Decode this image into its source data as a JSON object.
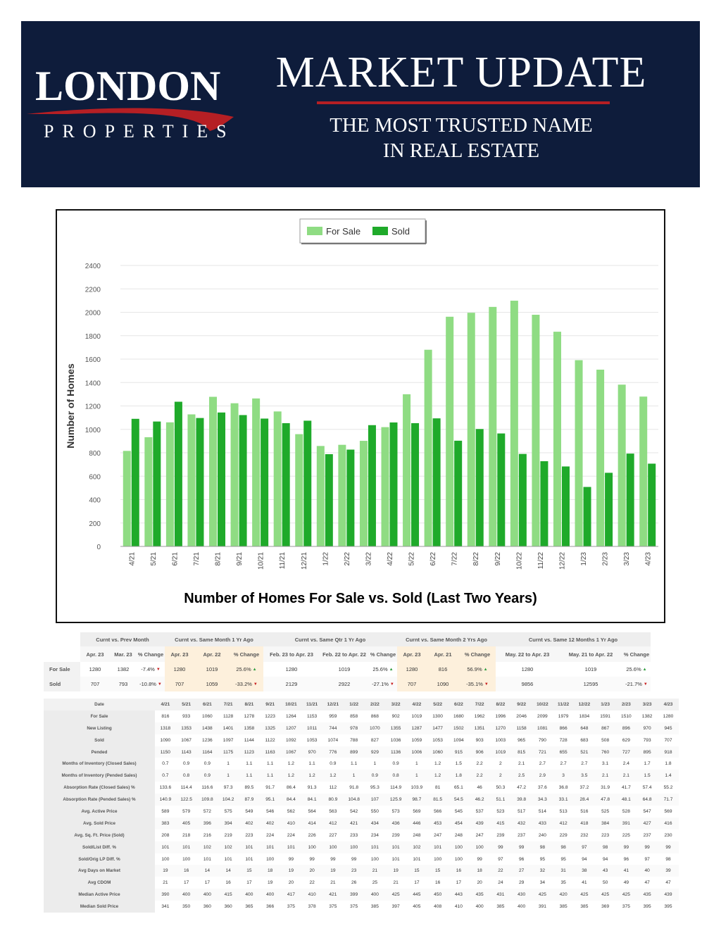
{
  "banner": {
    "logo_main": "LONDON",
    "logo_sub": "PROPERTIES",
    "title": "MARKET UPDATE",
    "tagline_1": "THE MOST TRUSTED NAME",
    "tagline_2": "IN REAL ESTATE",
    "bg_color": "#0e1c3b",
    "accent_color": "#b51f24"
  },
  "chart_data": {
    "type": "bar",
    "title": "Number of Homes For Sale vs. Sold (Last Two Years)",
    "xlabel": "",
    "ylabel": "Number of Homes",
    "ylim": [
      0,
      2400
    ],
    "yticks": [
      0,
      200,
      400,
      600,
      800,
      1000,
      1200,
      1400,
      1600,
      1800,
      2000,
      2200,
      2400
    ],
    "grid": true,
    "legend_position": "top-center",
    "categories": [
      "4/21",
      "5/21",
      "6/21",
      "7/21",
      "8/21",
      "9/21",
      "10/21",
      "11/21",
      "12/21",
      "1/22",
      "2/22",
      "3/22",
      "4/22",
      "5/22",
      "6/22",
      "7/22",
      "8/22",
      "9/22",
      "10/22",
      "11/22",
      "12/22",
      "1/23",
      "2/23",
      "3/23",
      "4/23"
    ],
    "series": [
      {
        "name": "For Sale",
        "color": "#8fdc83",
        "values": [
          816,
          933,
          1060,
          1128,
          1278,
          1223,
          1264,
          1153,
          959,
          858,
          868,
          902,
          1019,
          1300,
          1680,
          1962,
          1996,
          2046,
          2099,
          1979,
          1834,
          1591,
          1510,
          1382,
          1280
        ]
      },
      {
        "name": "Sold",
        "color": "#1faa2a",
        "values": [
          1090,
          1067,
          1236,
          1097,
          1144,
          1122,
          1092,
          1053,
          1074,
          788,
          827,
          1036,
          1059,
          1053,
          1094,
          903,
          1003,
          965,
          790,
          728,
          683,
          508,
          629,
          793,
          707
        ]
      }
    ]
  },
  "summary": {
    "groups": [
      "Curnt vs. Prev Month",
      "Curnt vs. Same Month 1 Yr Ago",
      "Curnt vs. Same Qtr 1 Yr Ago",
      "Curnt vs. Same Month 2 Yrs Ago",
      "Curnt vs. Same 12 Months 1 Yr Ago"
    ],
    "subheads": [
      "Apr. 23",
      "Mar. 23",
      "% Change",
      "Apr. 23",
      "Apr. 22",
      "% Change",
      "Feb. 23 to Apr. 23",
      "Feb. 22 to Apr. 22",
      "% Change",
      "Apr. 23",
      "Apr. 21",
      "% Change",
      "May. 22 to Apr. 23",
      "May. 21 to Apr. 22",
      "% Change"
    ],
    "rows": [
      {
        "label": "For Sale",
        "cells": [
          "1280",
          "1382",
          "-7.4%",
          "1280",
          "1019",
          "25.6%",
          "1280",
          "1019",
          "25.6%",
          "1280",
          "816",
          "56.9%",
          "1280",
          "1019",
          "25.6%"
        ],
        "dirs": [
          "down",
          "up",
          "up",
          "up",
          "up"
        ]
      },
      {
        "label": "Sold",
        "cells": [
          "707",
          "793",
          "-10.8%",
          "707",
          "1059",
          "-33.2%",
          "2129",
          "2922",
          "-27.1%",
          "707",
          "1090",
          "-35.1%",
          "9856",
          "12595",
          "-21.7%"
        ],
        "dirs": [
          "down",
          "down",
          "down",
          "down",
          "down"
        ]
      }
    ],
    "highlight_color": "#fdf0dc"
  },
  "detail": {
    "date_label": "Date",
    "dates": [
      "4/21",
      "5/21",
      "6/21",
      "7/21",
      "8/21",
      "9/21",
      "10/21",
      "11/21",
      "12/21",
      "1/22",
      "2/22",
      "3/22",
      "4/22",
      "5/22",
      "6/22",
      "7/22",
      "8/22",
      "9/22",
      "10/22",
      "11/22",
      "12/22",
      "1/23",
      "2/23",
      "3/23",
      "4/23"
    ],
    "rows": [
      {
        "label": "For Sale",
        "values": [
          "816",
          "933",
          "1060",
          "1128",
          "1278",
          "1223",
          "1264",
          "1153",
          "959",
          "858",
          "868",
          "902",
          "1019",
          "1300",
          "1680",
          "1962",
          "1996",
          "2046",
          "2099",
          "1979",
          "1834",
          "1591",
          "1510",
          "1382",
          "1280"
        ]
      },
      {
        "label": "New Listing",
        "values": [
          "1318",
          "1353",
          "1438",
          "1401",
          "1358",
          "1325",
          "1207",
          "1011",
          "744",
          "978",
          "1070",
          "1355",
          "1287",
          "1477",
          "1502",
          "1351",
          "1270",
          "1158",
          "1081",
          "866",
          "648",
          "867",
          "896",
          "970",
          "945"
        ]
      },
      {
        "label": "Sold",
        "values": [
          "1090",
          "1067",
          "1236",
          "1097",
          "1144",
          "1122",
          "1092",
          "1053",
          "1074",
          "788",
          "827",
          "1036",
          "1059",
          "1053",
          "1094",
          "903",
          "1003",
          "965",
          "790",
          "728",
          "683",
          "508",
          "629",
          "793",
          "707"
        ]
      },
      {
        "label": "Pended",
        "values": [
          "1150",
          "1143",
          "1164",
          "1175",
          "1123",
          "1163",
          "1067",
          "970",
          "776",
          "899",
          "929",
          "1136",
          "1006",
          "1060",
          "915",
          "906",
          "1019",
          "815",
          "721",
          "655",
          "521",
          "760",
          "727",
          "895",
          "918"
        ]
      },
      {
        "label": "Months of Inventory (Closed Sales)",
        "values": [
          "0.7",
          "0.9",
          "0.9",
          "1",
          "1.1",
          "1.1",
          "1.2",
          "1.1",
          "0.9",
          "1.1",
          "1",
          "0.9",
          "1",
          "1.2",
          "1.5",
          "2.2",
          "2",
          "2.1",
          "2.7",
          "2.7",
          "2.7",
          "3.1",
          "2.4",
          "1.7",
          "1.8"
        ]
      },
      {
        "label": "Months of Inventory (Pended Sales)",
        "values": [
          "0.7",
          "0.8",
          "0.9",
          "1",
          "1.1",
          "1.1",
          "1.2",
          "1.2",
          "1.2",
          "1",
          "0.9",
          "0.8",
          "1",
          "1.2",
          "1.8",
          "2.2",
          "2",
          "2.5",
          "2.9",
          "3",
          "3.5",
          "2.1",
          "2.1",
          "1.5",
          "1.4"
        ]
      },
      {
        "label": "Absorption Rate (Closed Sales) %",
        "values": [
          "133.6",
          "114.4",
          "116.6",
          "97.3",
          "89.5",
          "91.7",
          "86.4",
          "91.3",
          "112",
          "91.8",
          "95.3",
          "114.9",
          "103.9",
          "81",
          "65.1",
          "46",
          "50.3",
          "47.2",
          "37.6",
          "36.8",
          "37.2",
          "31.9",
          "41.7",
          "57.4",
          "55.2"
        ]
      },
      {
        "label": "Absorption Rate (Pended Sales) %",
        "values": [
          "140.9",
          "122.5",
          "109.8",
          "104.2",
          "87.9",
          "95.1",
          "84.4",
          "84.1",
          "80.9",
          "104.8",
          "107",
          "125.9",
          "98.7",
          "81.5",
          "54.5",
          "46.2",
          "51.1",
          "39.8",
          "34.3",
          "33.1",
          "28.4",
          "47.8",
          "48.1",
          "64.8",
          "71.7"
        ]
      },
      {
        "label": "Avg. Active Price",
        "values": [
          "589",
          "579",
          "572",
          "575",
          "549",
          "546",
          "562",
          "564",
          "563",
          "542",
          "550",
          "573",
          "569",
          "566",
          "545",
          "537",
          "523",
          "517",
          "514",
          "513",
          "516",
          "525",
          "528",
          "547",
          "569"
        ]
      },
      {
        "label": "Avg. Sold Price",
        "values": [
          "383",
          "405",
          "396",
          "394",
          "402",
          "402",
          "410",
          "414",
          "412",
          "421",
          "434",
          "436",
          "446",
          "453",
          "454",
          "439",
          "415",
          "432",
          "433",
          "412",
          "418",
          "384",
          "391",
          "427",
          "416"
        ]
      },
      {
        "label": "Avg. Sq. Ft. Price (Sold)",
        "values": [
          "208",
          "218",
          "216",
          "219",
          "223",
          "224",
          "224",
          "226",
          "227",
          "233",
          "234",
          "239",
          "248",
          "247",
          "248",
          "247",
          "239",
          "237",
          "240",
          "229",
          "232",
          "223",
          "225",
          "237",
          "230"
        ]
      },
      {
        "label": "Sold/List Diff. %",
        "values": [
          "101",
          "101",
          "102",
          "102",
          "101",
          "101",
          "101",
          "100",
          "100",
          "100",
          "101",
          "101",
          "102",
          "101",
          "100",
          "100",
          "99",
          "99",
          "98",
          "98",
          "97",
          "98",
          "99",
          "99",
          "99"
        ]
      },
      {
        "label": "Sold/Orig LP Diff. %",
        "values": [
          "100",
          "100",
          "101",
          "101",
          "101",
          "100",
          "99",
          "99",
          "99",
          "99",
          "100",
          "101",
          "101",
          "100",
          "100",
          "99",
          "97",
          "96",
          "95",
          "95",
          "94",
          "94",
          "96",
          "97",
          "98"
        ]
      },
      {
        "label": "Avg Days on Market",
        "values": [
          "19",
          "16",
          "14",
          "14",
          "15",
          "18",
          "19",
          "20",
          "19",
          "23",
          "21",
          "19",
          "15",
          "15",
          "16",
          "18",
          "22",
          "27",
          "32",
          "31",
          "38",
          "43",
          "41",
          "40",
          "39"
        ]
      },
      {
        "label": "Avg CDOM",
        "values": [
          "21",
          "17",
          "17",
          "16",
          "17",
          "19",
          "20",
          "22",
          "21",
          "26",
          "25",
          "21",
          "17",
          "16",
          "17",
          "20",
          "24",
          "29",
          "34",
          "35",
          "41",
          "50",
          "49",
          "47",
          "47"
        ]
      },
      {
        "label": "Median Active Price",
        "values": [
          "390",
          "400",
          "400",
          "415",
          "400",
          "400",
          "417",
          "410",
          "421",
          "399",
          "400",
          "425",
          "445",
          "450",
          "443",
          "435",
          "431",
          "430",
          "425",
          "420",
          "425",
          "425",
          "425",
          "435",
          "439"
        ]
      },
      {
        "label": "Median Sold Price",
        "values": [
          "341",
          "350",
          "360",
          "360",
          "365",
          "366",
          "375",
          "378",
          "375",
          "375",
          "385",
          "397",
          "405",
          "408",
          "410",
          "400",
          "385",
          "400",
          "391",
          "385",
          "385",
          "369",
          "375",
          "395",
          "395"
        ]
      }
    ]
  }
}
